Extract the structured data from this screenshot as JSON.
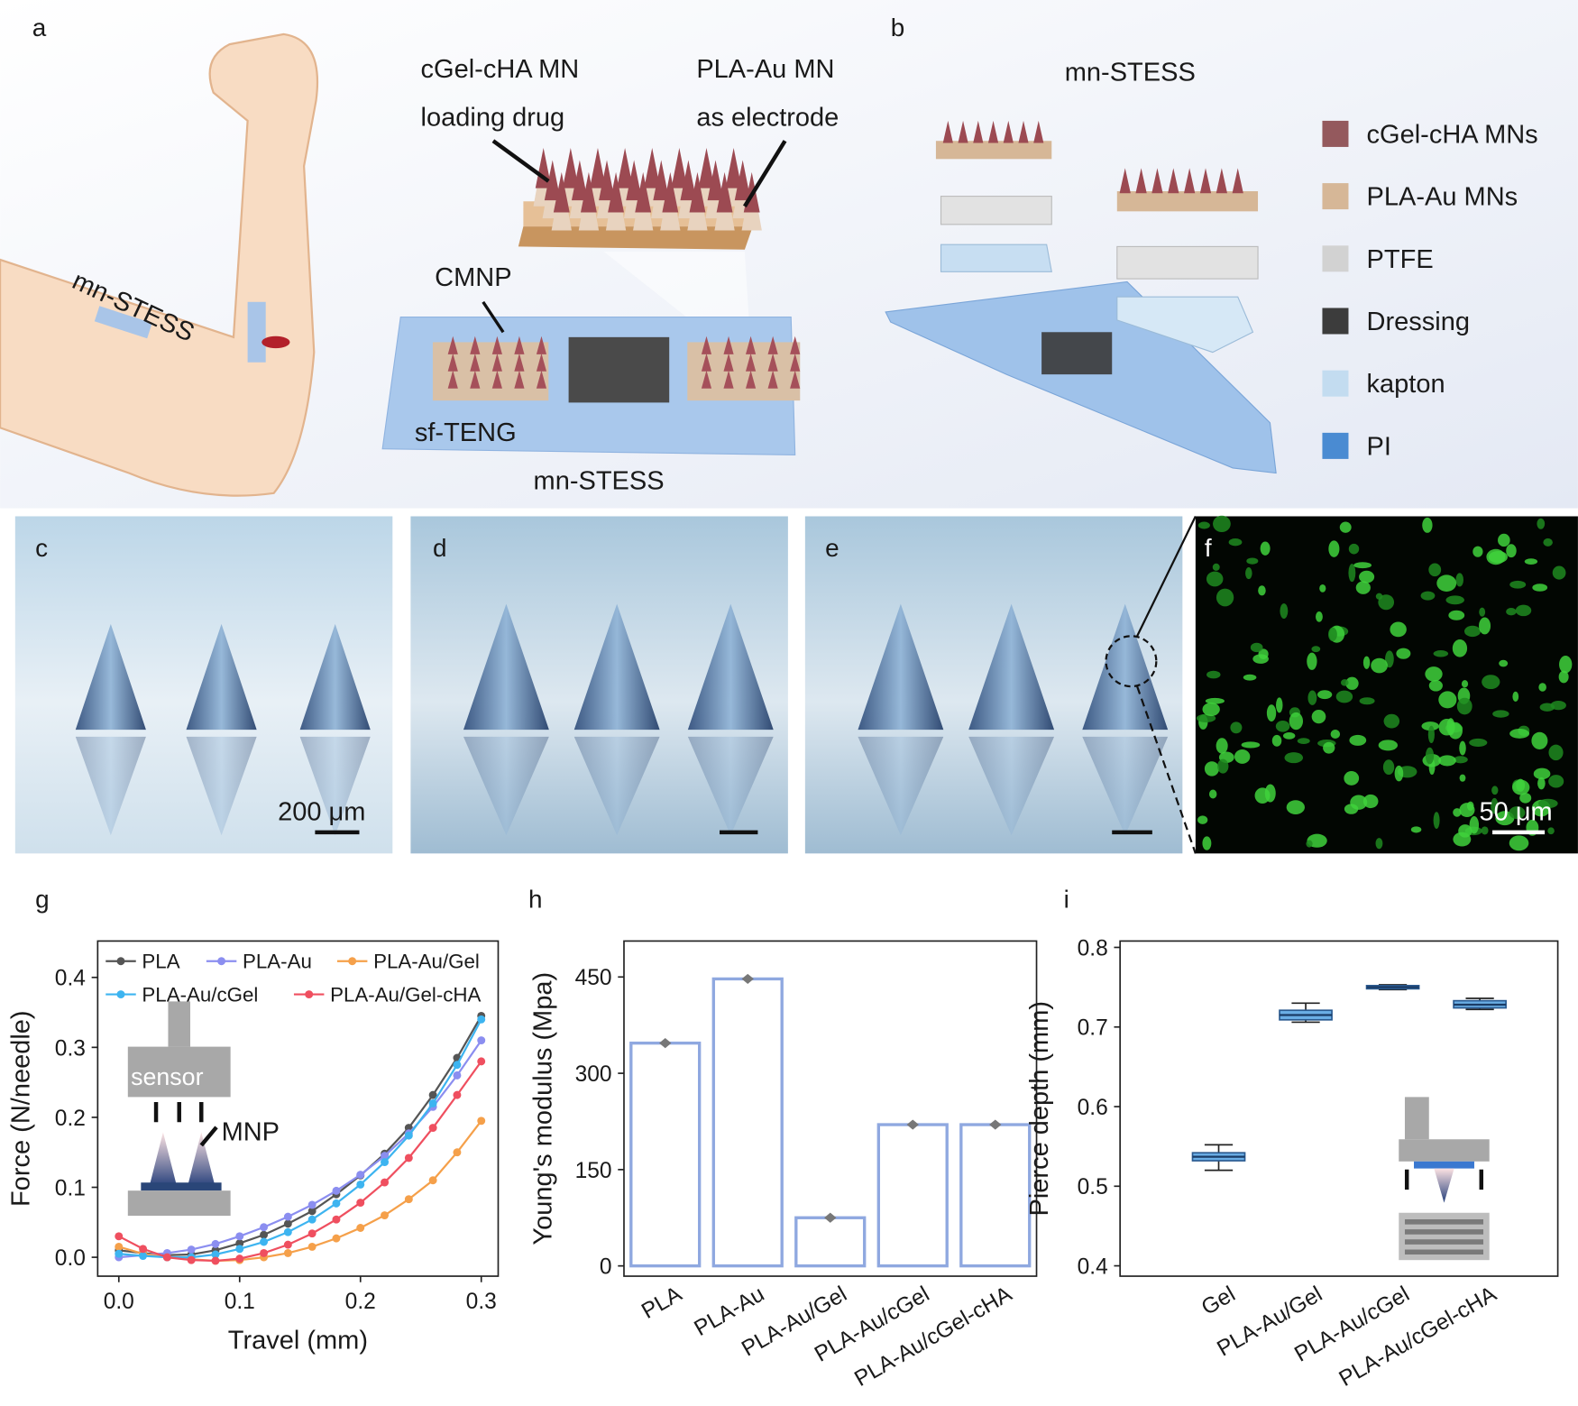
{
  "figure": {
    "panel_labels": [
      "a",
      "b",
      "c",
      "d",
      "e",
      "f",
      "g",
      "h",
      "i"
    ],
    "a": {
      "arm_label": "mn-STESS",
      "mn1": "cGel-cHA MN",
      "mn1_sub": "loading drug",
      "mn2": "PLA-Au MN",
      "mn2_sub": "as electrode",
      "cmnp": "CMNP",
      "teng": "sf-TENG",
      "device": "mn-STESS"
    },
    "b": {
      "title": "mn-STESS",
      "legend": [
        {
          "name": "cGel-cHA MNs",
          "color": "#94595d"
        },
        {
          "name": "PLA-Au MNs",
          "color": "#d6b797"
        },
        {
          "name": "PTFE",
          "color": "#d2d2d2"
        },
        {
          "name": "Dressing",
          "color": "#3c3c3c"
        },
        {
          "name": "kapton",
          "color": "#c3dcf0"
        },
        {
          "name": "PI",
          "color": "#4a8bd2"
        }
      ]
    },
    "c": {
      "scale_bar": "200 μm"
    },
    "f": {
      "scale_bar": "50 μm"
    },
    "g_inset": {
      "sensor": "sensor",
      "mnp": "MNP"
    }
  },
  "chart_data": [
    {
      "type": "line",
      "xlabel": "Travel (mm)",
      "ylabel": "Force (N/needle)",
      "x": [
        0,
        0.02,
        0.04,
        0.06,
        0.08,
        0.1,
        0.12,
        0.14,
        0.16,
        0.18,
        0.2,
        0.22,
        0.24,
        0.26,
        0.28,
        0.3
      ],
      "series": [
        {
          "name": "PLA",
          "color": "#555555",
          "values": [
            0.01,
            0.006,
            0.003,
            0.004,
            0.01,
            0.02,
            0.032,
            0.048,
            0.066,
            0.09,
            0.117,
            0.148,
            0.185,
            0.232,
            0.285,
            0.345
          ]
        },
        {
          "name": "PLA-Au",
          "color": "#8b8ef0",
          "values": [
            0.0,
            0.003,
            0.006,
            0.011,
            0.019,
            0.03,
            0.043,
            0.058,
            0.075,
            0.095,
            0.118,
            0.145,
            0.177,
            0.215,
            0.26,
            0.31
          ]
        },
        {
          "name": "PLA-Au/Gel",
          "color": "#f5a04a",
          "values": [
            0.015,
            0.005,
            0.0,
            -0.003,
            -0.005,
            -0.004,
            0.0,
            0.006,
            0.015,
            0.027,
            0.042,
            0.06,
            0.083,
            0.11,
            0.15,
            0.195
          ]
        },
        {
          "name": "PLA-Au/cGel",
          "color": "#3db4f0",
          "values": [
            0.005,
            0.002,
            0.0,
            0.0,
            0.004,
            0.012,
            0.022,
            0.036,
            0.054,
            0.077,
            0.104,
            0.136,
            0.174,
            0.22,
            0.275,
            0.34
          ]
        },
        {
          "name": "PLA-Au/Gel-cHA",
          "color": "#ef4f5f",
          "values": [
            0.03,
            0.012,
            0.0,
            -0.004,
            -0.005,
            -0.002,
            0.006,
            0.018,
            0.034,
            0.054,
            0.078,
            0.107,
            0.142,
            0.185,
            0.232,
            0.28
          ]
        }
      ],
      "xlim": [
        -0.0175,
        0.314
      ],
      "xticks": [
        {
          "value": 0,
          "label": "0.0"
        },
        0.1,
        0.2,
        0.3
      ],
      "ylim": [
        -0.027,
        0.452
      ],
      "yticks": [
        {
          "value": 0,
          "label": "0.0"
        },
        0.1,
        0.2,
        0.3,
        0.4
      ]
    },
    {
      "type": "bar",
      "ylabel": "Young's modulus (Mpa)",
      "categories": [
        "PLA",
        "PLA-Au",
        "PLA-Au/Gel",
        "PLA-Au/cGel",
        "PLA-Au/cGel-cHA"
      ],
      "values": [
        347,
        447,
        75,
        220,
        220
      ],
      "color": "#8fa8e0",
      "ylim": [
        -16,
        506
      ],
      "yticks": [
        0,
        150,
        300,
        450
      ]
    },
    {
      "type": "box",
      "ylabel": "Pierce depth (mm)",
      "categories": [
        "Gel",
        "PLA-Au/Gel",
        "PLA-Au/cGel",
        "PLA-Au/cGel-cHA"
      ],
      "boxes": [
        {
          "min": 0.52,
          "q1": 0.532,
          "median": 0.537,
          "q3": 0.542,
          "max": 0.552
        },
        {
          "min": 0.706,
          "q1": 0.709,
          "median": 0.715,
          "q3": 0.721,
          "max": 0.73
        },
        {
          "min": 0.747,
          "q1": 0.748,
          "median": 0.75,
          "q3": 0.752,
          "max": 0.753
        },
        {
          "min": 0.722,
          "q1": 0.724,
          "median": 0.728,
          "q3": 0.733,
          "max": 0.736
        }
      ],
      "color": "#6aaee5",
      "ylim": [
        0.387,
        0.808
      ],
      "yticks": [
        0.4,
        0.5,
        0.6,
        0.7,
        0.8
      ]
    }
  ]
}
